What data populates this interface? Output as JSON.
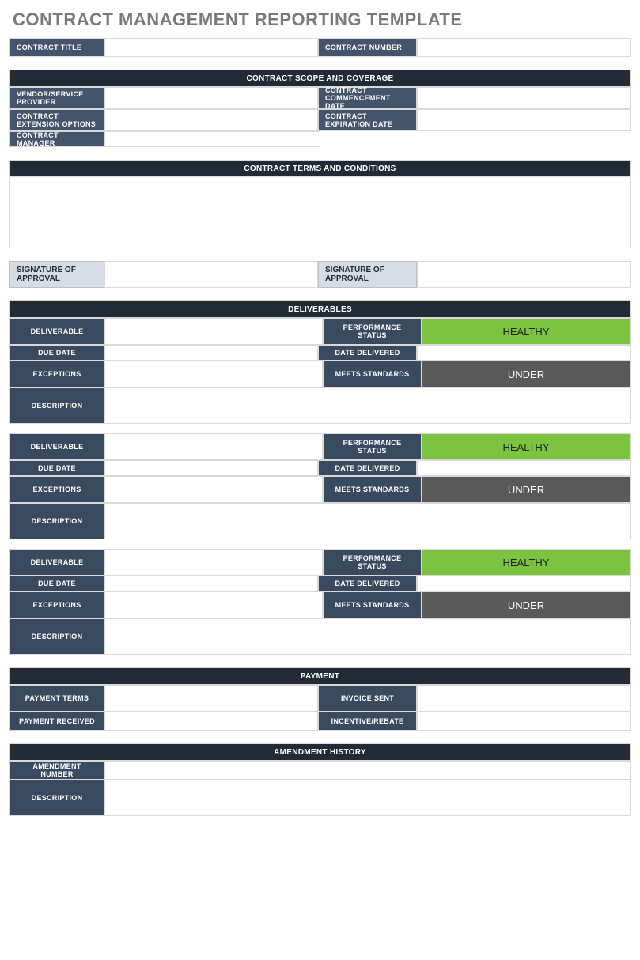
{
  "title": "CONTRACT MANAGEMENT REPORTING TEMPLATE",
  "colors": {
    "header_dark": "#222b35",
    "label_bg": "#44546a",
    "label_med": "#3a4a5e",
    "sig_bg": "#d6dce5",
    "healthy": "#7cc440",
    "under": "#595959",
    "border": "#d9d9d9",
    "title_gray": "#7a7a7a"
  },
  "top": {
    "contract_title_label": "CONTRACT TITLE",
    "contract_title_value": "",
    "contract_number_label": "CONTRACT NUMBER",
    "contract_number_value": ""
  },
  "scope": {
    "header": "CONTRACT SCOPE AND COVERAGE",
    "rows": [
      {
        "l1": "VENDOR/SERVICE PROVIDER",
        "v1": "",
        "l2": "CONTRACT COMMENCEMENT DATE",
        "v2": ""
      },
      {
        "l1": "CONTRACT EXTENSION OPTIONS",
        "v1": "",
        "l2": "CONTRACT EXPIRATION DATE",
        "v2": ""
      },
      {
        "l1": "CONTRACT MANAGER",
        "v1": "",
        "l2": "",
        "v2": ""
      }
    ]
  },
  "terms": {
    "header": "CONTRACT TERMS AND CONDITIONS",
    "body": ""
  },
  "signatures": {
    "label1": "SIGNATURE OF APPROVAL",
    "value1": "",
    "label2": "SIGNATURE OF APPROVAL",
    "value2": ""
  },
  "deliverables": {
    "header": "DELIVERABLES",
    "items": [
      {
        "deliverable_label": "DELIVERABLE",
        "deliverable_value": "",
        "perf_label": "PERFORMANCE STATUS",
        "perf_value": "HEALTHY",
        "due_label": "DUE DATE",
        "due_value": "",
        "delivered_label": "DATE DELIVERED",
        "delivered_value": "",
        "exc_label": "EXCEPTIONS",
        "exc_value": "",
        "std_label": "MEETS STANDARDS",
        "std_value": "UNDER",
        "desc_label": "DESCRIPTION",
        "desc_value": ""
      },
      {
        "deliverable_label": "DELIVERABLE",
        "deliverable_value": "",
        "perf_label": "PERFORMANCE STATUS",
        "perf_value": "HEALTHY",
        "due_label": "DUE DATE",
        "due_value": "",
        "delivered_label": "DATE DELIVERED",
        "delivered_value": "",
        "exc_label": "EXCEPTIONS",
        "exc_value": "",
        "std_label": "MEETS STANDARDS",
        "std_value": "UNDER",
        "desc_label": "DESCRIPTION",
        "desc_value": ""
      },
      {
        "deliverable_label": "DELIVERABLE",
        "deliverable_value": "",
        "perf_label": "PERFORMANCE STATUS",
        "perf_value": "HEALTHY",
        "due_label": "DUE DATE",
        "due_value": "",
        "delivered_label": "DATE DELIVERED",
        "delivered_value": "",
        "exc_label": "EXCEPTIONS",
        "exc_value": "",
        "std_label": "MEETS STANDARDS",
        "std_value": "UNDER",
        "desc_label": "DESCRIPTION",
        "desc_value": ""
      }
    ]
  },
  "payment": {
    "header": "PAYMENT",
    "rows": [
      {
        "l1": "PAYMENT TERMS",
        "v1": "",
        "l2": "INVOICE SENT",
        "v2": ""
      },
      {
        "l1": "PAYMENT RECEIVED",
        "v1": "",
        "l2": "INCENTIVE/REBATE",
        "v2": ""
      }
    ]
  },
  "amendment": {
    "header": "AMENDMENT HISTORY",
    "num_label": "AMENDMENT NUMBER",
    "num_value": "",
    "desc_label": "DESCRIPTION",
    "desc_value": ""
  }
}
